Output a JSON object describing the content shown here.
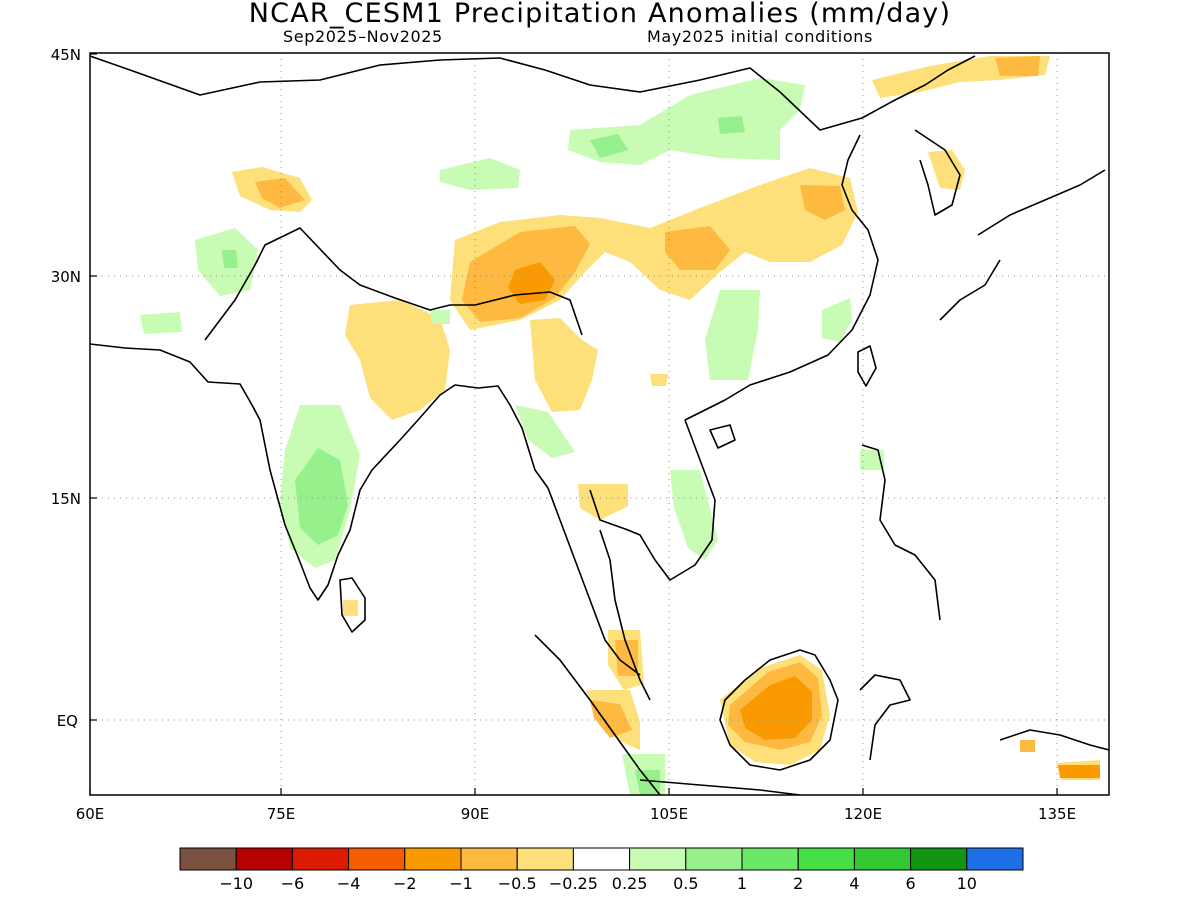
{
  "title": "NCAR_CESM1 Precipitation Anomalies (mm/day)",
  "period": "Sep2025–Nov2025",
  "initial_conditions": "May2025 initial conditions",
  "axes": {
    "x_ticks": [
      "60E",
      "75E",
      "90E",
      "105E",
      "120E",
      "135E"
    ],
    "y_ticks": [
      "45N",
      "30N",
      "15N",
      "EQ"
    ],
    "lon_range": [
      60,
      140
    ],
    "lat_range": [
      -5,
      45
    ]
  },
  "colorbar": {
    "colors": [
      "#7a5040",
      "#b80000",
      "#dc1a00",
      "#f55d00",
      "#fa9a00",
      "#fdb940",
      "#fde07a",
      "#ffffff",
      "#c8fcb4",
      "#96f08c",
      "#6ce868",
      "#46e046",
      "#32c832",
      "#129612",
      "#1e6ee6"
    ],
    "labels": [
      "−10",
      "−6",
      "−4",
      "−2",
      "−1",
      "−0.5",
      "−0.25",
      "0.25",
      "0.5",
      "1",
      "2",
      "4",
      "6",
      "10"
    ]
  },
  "anomaly_fields": [
    {
      "level": "-0.5",
      "color": "#fde07a",
      "region": "northern india and tibetan plateau"
    },
    {
      "level": "-1",
      "color": "#fdb940",
      "region": "tibetan plateau"
    },
    {
      "level": "-2",
      "color": "#fa9a00",
      "region": "southern tibet"
    },
    {
      "level": "-1",
      "color": "#fdb940",
      "region": "borneo"
    },
    {
      "level": "-2",
      "color": "#fa9a00",
      "region": "borneo"
    },
    {
      "level": "0.5",
      "color": "#c8fcb4",
      "region": "mongolia and southern india"
    },
    {
      "level": "1",
      "color": "#96f08c",
      "region": "southern india"
    }
  ]
}
